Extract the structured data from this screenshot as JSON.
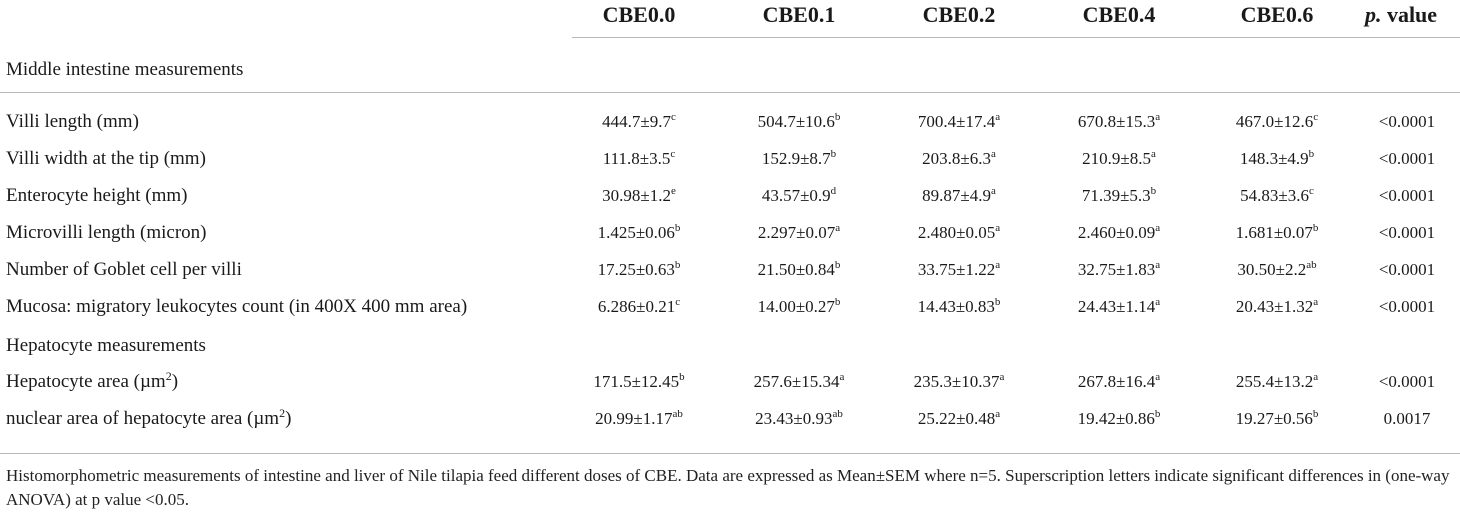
{
  "columns": [
    "CBE0.0",
    "CBE0.1",
    "CBE0.2",
    "CBE0.4",
    "CBE0.6"
  ],
  "pvalue_header": {
    "italic": "p.",
    "rest": " value"
  },
  "sections": [
    {
      "title": "Middle intestine measurements",
      "rows": [
        {
          "label": "Villi length (mm)",
          "label_sup": "",
          "label_after": "",
          "cells": [
            {
              "v": "444.7±9.7",
              "s": "c"
            },
            {
              "v": "504.7±10.6",
              "s": "b"
            },
            {
              "v": "700.4±17.4",
              "s": "a"
            },
            {
              "v": "670.8±15.3",
              "s": "a"
            },
            {
              "v": "467.0±12.6",
              "s": "c"
            }
          ],
          "p": "<0.0001"
        },
        {
          "label": "Villi width at the tip (mm)",
          "label_sup": "",
          "label_after": "",
          "cells": [
            {
              "v": "111.8±3.5",
              "s": "c"
            },
            {
              "v": "152.9±8.7",
              "s": "b"
            },
            {
              "v": "203.8±6.3",
              "s": "a"
            },
            {
              "v": "210.9±8.5",
              "s": "a"
            },
            {
              "v": "148.3±4.9",
              "s": "b"
            }
          ],
          "p": "<0.0001"
        },
        {
          "label": "Enterocyte height (mm)",
          "label_sup": "",
          "label_after": "",
          "cells": [
            {
              "v": "30.98±1.2",
              "s": "e"
            },
            {
              "v": "43.57±0.9",
              "s": "d"
            },
            {
              "v": "89.87±4.9",
              "s": "a"
            },
            {
              "v": "71.39±5.3",
              "s": "b"
            },
            {
              "v": "54.83±3.6",
              "s": "c"
            }
          ],
          "p": "<0.0001"
        },
        {
          "label": "Microvilli length (micron)",
          "label_sup": "",
          "label_after": "",
          "cells": [
            {
              "v": "1.425±0.06",
              "s": "b"
            },
            {
              "v": "2.297±0.07",
              "s": "a"
            },
            {
              "v": "2.480±0.05",
              "s": "a"
            },
            {
              "v": "2.460±0.09",
              "s": "a"
            },
            {
              "v": "1.681±0.07",
              "s": "b"
            }
          ],
          "p": "<0.0001"
        },
        {
          "label": "Number of Goblet cell per villi",
          "label_sup": "",
          "label_after": "",
          "cells": [
            {
              "v": "17.25±0.63",
              "s": "b"
            },
            {
              "v": "21.50±0.84",
              "s": "b"
            },
            {
              "v": "33.75±1.22",
              "s": "a"
            },
            {
              "v": "32.75±1.83",
              "s": "a"
            },
            {
              "v": "30.50±2.2",
              "s": "ab"
            }
          ],
          "p": "<0.0001"
        },
        {
          "label": "Mucosa: migratory leukocytes count (in 400X 400 mm area)",
          "label_sup": "",
          "label_after": "",
          "cells": [
            {
              "v": "6.286±0.21",
              "s": "c"
            },
            {
              "v": "14.00±0.27",
              "s": "b"
            },
            {
              "v": "14.43±0.83",
              "s": "b"
            },
            {
              "v": "24.43±1.14",
              "s": "a"
            },
            {
              "v": "20.43±1.32",
              "s": "a"
            }
          ],
          "p": "<0.0001"
        }
      ]
    },
    {
      "title": "Hepatocyte measurements",
      "rows": [
        {
          "label": "Hepatocyte area (µm",
          "label_sup": "2",
          "label_after": ")",
          "cells": [
            {
              "v": "171.5±12.45",
              "s": "b"
            },
            {
              "v": "257.6±15.34",
              "s": "a"
            },
            {
              "v": "235.3±10.37",
              "s": "a"
            },
            {
              "v": "267.8±16.4",
              "s": "a"
            },
            {
              "v": "255.4±13.2",
              "s": "a"
            }
          ],
          "p": "<0.0001"
        },
        {
          "label": "nuclear area of hepatocyte area (µm",
          "label_sup": "2",
          "label_after": ")",
          "cells": [
            {
              "v": "20.99±1.17",
              "s": "ab"
            },
            {
              "v": "23.43±0.93",
              "s": "ab"
            },
            {
              "v": "25.22±0.48",
              "s": "a"
            },
            {
              "v": "19.42±0.86",
              "s": "b"
            },
            {
              "v": "19.27±0.56",
              "s": "b"
            }
          ],
          "p": "0.0017"
        }
      ]
    }
  ],
  "footnote": "Histomorphometric measurements of intestine and liver of Nile tilapia feed different doses of CBE. Data are expressed as Mean±SEM where n=5. Superscription letters indicate significant differences in (one-way ANOVA) at p value <0.05."
}
